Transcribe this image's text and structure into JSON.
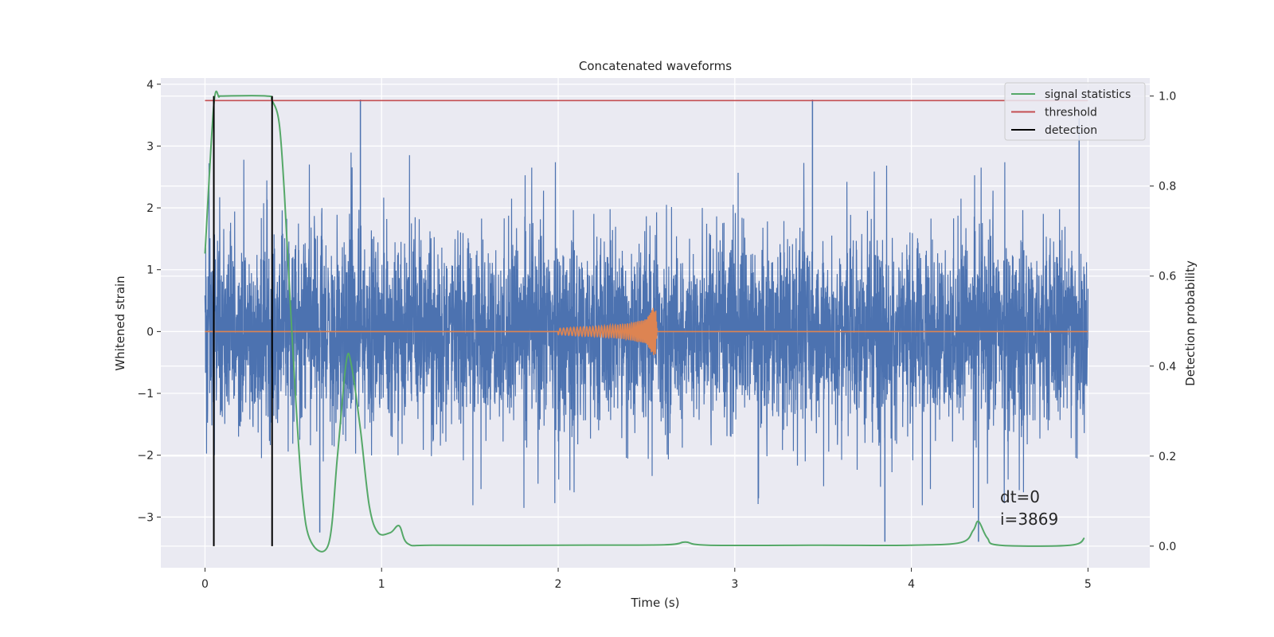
{
  "chart_data": {
    "type": "line",
    "title": "Concatenated waveforms",
    "xlabel": "Time (s)",
    "ylabel": "Whitened strain",
    "ylabel_right": "Detection probability",
    "xlim": [
      -0.25,
      5.35
    ],
    "ylim": [
      -3.82,
      4.1
    ],
    "ylim_right": [
      -0.048,
      1.04
    ],
    "x_ticks": [
      0,
      1,
      2,
      3,
      4,
      5
    ],
    "x_tick_labels": [
      "0",
      "1",
      "2",
      "3",
      "4",
      "5"
    ],
    "y_ticks": [
      4,
      3,
      2,
      1,
      0,
      -1,
      -2,
      -3
    ],
    "y_tick_labels": [
      "4",
      "3",
      "2",
      "1",
      "0",
      "−1",
      "−2",
      "−3"
    ],
    "y_right_ticks": [
      1.0,
      0.8,
      0.6,
      0.4,
      0.2,
      0.0
    ],
    "y_right_tick_labels": [
      "1.0",
      "0.8",
      "0.6",
      "0.4",
      "0.2",
      "0.0"
    ],
    "grid": true,
    "legend_position": "top-right",
    "legend": [
      {
        "label": "signal statistics",
        "color": "#55a868"
      },
      {
        "label": "threshold",
        "color": "#c44e52"
      },
      {
        "label": "detection",
        "color": "#000000"
      }
    ],
    "series": [
      {
        "role": "whitened noise strain",
        "axis": "left",
        "color": "#4c72b0",
        "x_range": [
          0,
          5
        ],
        "typical_amplitude": 0.9,
        "extreme_peaks": [
          [
            0.88,
            3.75
          ],
          [
            3.44,
            3.75
          ],
          [
            4.95,
            3.45
          ],
          [
            0.05,
            -2.58
          ],
          [
            3.85,
            -3.4
          ],
          [
            4.38,
            -3.4
          ],
          [
            0.65,
            -3.25
          ]
        ]
      },
      {
        "role": "injected chirp waveform",
        "axis": "left",
        "color": "#dd8452",
        "x": [
          0,
          2.0,
          2.1,
          2.2,
          2.3,
          2.4,
          2.5,
          2.55,
          2.56,
          5
        ],
        "y_envelope": [
          0,
          0.05,
          0.07,
          0.08,
          0.1,
          0.13,
          0.2,
          0.45,
          0,
          0
        ]
      },
      {
        "name": "signal statistics",
        "axis": "right",
        "color": "#55a868",
        "x": [
          0,
          0.05,
          0.08,
          0.1,
          0.35,
          0.38,
          0.42,
          0.45,
          0.5,
          0.55,
          0.6,
          0.7,
          0.75,
          0.8,
          0.83,
          0.88,
          0.93,
          0.98,
          1.05,
          1.1,
          1.15,
          1.3,
          2.0,
          2.6,
          2.72,
          2.85,
          3.5,
          4.0,
          4.28,
          4.35,
          4.38,
          4.43,
          4.5,
          4.9,
          4.98
        ],
        "y": [
          0.65,
          0.98,
          0.998,
          1.0,
          1.0,
          0.99,
          0.94,
          0.78,
          0.42,
          0.12,
          0.01,
          0.005,
          0.2,
          0.41,
          0.4,
          0.26,
          0.09,
          0.03,
          0.03,
          0.045,
          0.005,
          0.002,
          0.002,
          0.003,
          0.009,
          0.002,
          0.002,
          0.002,
          0.008,
          0.035,
          0.055,
          0.018,
          0.002,
          0.002,
          0.018
        ]
      },
      {
        "name": "threshold",
        "axis": "right",
        "color": "#c44e52",
        "x": [
          0,
          5
        ],
        "y": [
          0.99,
          0.99
        ]
      },
      {
        "name": "detection",
        "axis": "right",
        "color": "#000000",
        "x": [
          0.05,
          0.38
        ],
        "y_span": [
          0.0,
          1.0
        ]
      }
    ],
    "annotations": [
      "dt=0",
      "i=3869"
    ]
  }
}
